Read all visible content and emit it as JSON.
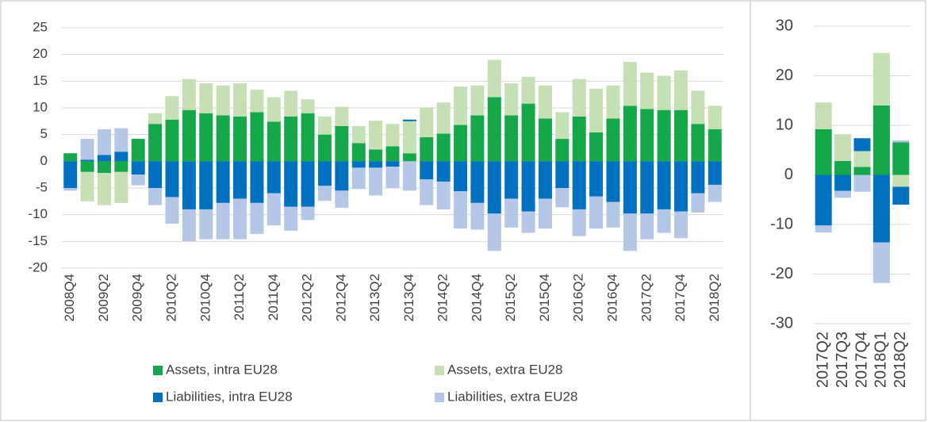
{
  "chart_data": [
    {
      "type": "bar",
      "stacked": true,
      "grid": true,
      "legend": "bottom",
      "categories": [
        "2008Q4",
        null,
        "2009Q2",
        null,
        "2009Q4",
        null,
        "2010Q2",
        null,
        "2010Q4",
        null,
        "2011Q2",
        null,
        "2011Q4",
        null,
        "2012Q2",
        null,
        "2012Q4",
        null,
        "2013Q2",
        null,
        "2013Q4",
        null,
        "2014Q2",
        null,
        "2014Q4",
        null,
        "2015Q2",
        null,
        "2015Q4",
        null,
        "2016Q2",
        null,
        "2016Q4",
        null,
        "2017Q2",
        null,
        "2017Q4",
        null,
        "2018Q2"
      ],
      "ylim": [
        -20,
        25
      ],
      "yticks": [
        -20,
        -15,
        -10,
        -5,
        0,
        5,
        10,
        15,
        20,
        25
      ],
      "series": [
        {
          "name": "Assets, intra EU28",
          "color": "#14a84b",
          "values": [
            1.5,
            -2,
            -2.2,
            -2,
            4.2,
            7,
            7.8,
            9.6,
            9,
            8.6,
            8.4,
            9.2,
            7.4,
            8.4,
            9,
            5,
            6.6,
            3.4,
            2.2,
            2.8,
            1.5,
            4.5,
            5.2,
            6.8,
            8.6,
            12,
            8.6,
            10.8,
            8,
            4.2,
            8.4,
            5.4,
            8,
            10.4,
            9.8,
            9.6,
            9.6,
            7,
            6
          ]
        },
        {
          "name": "Assets, extra EU28",
          "color": "#c5e0b4",
          "values": [
            0,
            -5.5,
            -6,
            -5.8,
            0,
            2,
            4.4,
            5.8,
            5.6,
            5.6,
            6.2,
            4.2,
            4.6,
            4.8,
            2.6,
            3.4,
            3.6,
            3.2,
            5.4,
            4.2,
            6,
            5.6,
            5.8,
            7.2,
            5.6,
            7,
            6,
            5,
            6.2,
            5,
            7,
            8.2,
            6.2,
            8.2,
            6.8,
            6.4,
            7.4,
            6.2,
            4.4
          ]
        },
        {
          "name": "Liabilities, intra EU28",
          "color": "#0070c0",
          "values": [
            -5,
            0.3,
            1.2,
            1.8,
            -2.5,
            -5,
            -6.7,
            -9,
            -9,
            -7.8,
            -7,
            -7.8,
            -6,
            -8.5,
            -8.5,
            -4.6,
            -5.5,
            -1.2,
            -1.2,
            -1,
            0.3,
            -3.4,
            -3.8,
            -5.6,
            -7.8,
            -9.8,
            -7,
            -9.4,
            -7,
            -5,
            -9,
            -6.6,
            -7.6,
            -9.8,
            -9.8,
            -9,
            -9.4,
            -6,
            -4.4
          ]
        },
        {
          "name": "Liabilities, extra EU28",
          "color": "#b4c7e7",
          "values": [
            -0.5,
            3.9,
            4.8,
            4.4,
            -2,
            -3.2,
            -5,
            -6,
            -5.6,
            -6.8,
            -7.6,
            -5.8,
            -6,
            -4.5,
            -2.5,
            -2.8,
            -3.2,
            -4,
            -5.2,
            -4,
            -5.5,
            -4.8,
            -5.2,
            -7,
            -5,
            -7,
            -5.4,
            -4,
            -5.6,
            -3.6,
            -5,
            -6,
            -4.8,
            -7,
            -4.8,
            -4.4,
            -5,
            -3.6,
            -3.2
          ]
        }
      ]
    },
    {
      "type": "bar",
      "stacked": true,
      "grid": true,
      "categories": [
        "2017Q2",
        "2017Q3",
        "2017Q4",
        "2018Q1",
        "2018Q2"
      ],
      "ylim": [
        -30,
        30
      ],
      "yticks": [
        -30,
        -20,
        -10,
        0,
        10,
        20,
        30
      ],
      "series": [
        {
          "color": "#14a84b",
          "values": [
            9.2,
            2.8,
            1.6,
            14,
            6.6
          ]
        },
        {
          "color": "#c5e0b4",
          "values": [
            5.4,
            5.4,
            3.2,
            10.6,
            -2.4
          ]
        },
        {
          "color": "#0070c0",
          "values": [
            -10.2,
            -3.2,
            2.6,
            -13.6,
            -3.6
          ]
        },
        {
          "color": "#b4c7e7",
          "values": [
            -1.4,
            -1.4,
            -3.4,
            -8.2,
            0.4
          ]
        }
      ]
    }
  ]
}
